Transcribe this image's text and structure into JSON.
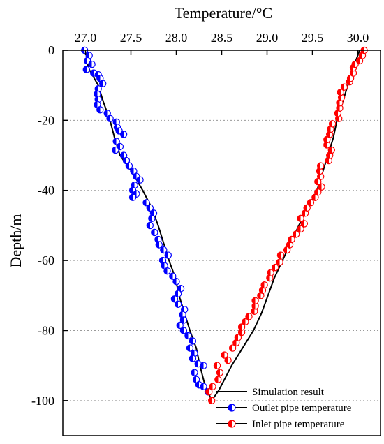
{
  "chart_data": {
    "type": "scatter",
    "xlabel": "Temperature/°C",
    "ylabel": "Depth/m",
    "x_axis_position": "top",
    "xlim": [
      26.75,
      30.25
    ],
    "ylim": [
      -110,
      0
    ],
    "xticks": [
      27.0,
      27.5,
      28.0,
      28.5,
      29.0,
      29.5,
      30.0
    ],
    "xtick_labels": [
      "27.0",
      "27.5",
      "28.0",
      "28.5",
      "29.0",
      "29.5",
      "30.0"
    ],
    "yticks": [
      0,
      -20,
      -40,
      -60,
      -80,
      -100
    ],
    "ytick_labels": [
      "0",
      "-20",
      "-40",
      "-60",
      "-80",
      "-100"
    ],
    "grid": "horizontal dotted",
    "legend_position": "bottom-right",
    "series": [
      {
        "name": "Simulation result",
        "kind": "line",
        "color": "#000000",
        "points": [
          [
            27.01,
            0
          ],
          [
            27.03,
            -5
          ],
          [
            27.14,
            -10
          ],
          [
            27.2,
            -15
          ],
          [
            27.27,
            -20
          ],
          [
            27.32,
            -25
          ],
          [
            27.38,
            -30
          ],
          [
            27.52,
            -35
          ],
          [
            27.63,
            -40
          ],
          [
            27.73,
            -45
          ],
          [
            27.8,
            -50
          ],
          [
            27.86,
            -55
          ],
          [
            27.92,
            -60
          ],
          [
            27.99,
            -65
          ],
          [
            28.03,
            -70
          ],
          [
            28.09,
            -75
          ],
          [
            28.15,
            -80
          ],
          [
            28.22,
            -85
          ],
          [
            28.26,
            -90
          ],
          [
            28.31,
            -95
          ],
          [
            28.39,
            -100
          ],
          [
            28.47,
            -97
          ],
          [
            28.61,
            -90
          ],
          [
            28.73,
            -85
          ],
          [
            28.85,
            -80
          ],
          [
            28.94,
            -75
          ],
          [
            29.01,
            -70
          ],
          [
            29.08,
            -65
          ],
          [
            29.17,
            -60
          ],
          [
            29.26,
            -55
          ],
          [
            29.35,
            -50
          ],
          [
            29.45,
            -45
          ],
          [
            29.55,
            -40
          ],
          [
            29.61,
            -35
          ],
          [
            29.67,
            -30
          ],
          [
            29.73,
            -25
          ],
          [
            29.77,
            -20
          ],
          [
            29.83,
            -15
          ],
          [
            29.89,
            -10
          ],
          [
            29.95,
            -5
          ],
          [
            30.02,
            0
          ]
        ]
      },
      {
        "name": "Outlet pipe temperature",
        "kind": "marker",
        "color": "#0000ff",
        "points": [
          [
            26.99,
            0
          ],
          [
            27.04,
            -1.5
          ],
          [
            27.02,
            -3
          ],
          [
            27.07,
            -4
          ],
          [
            27.01,
            -5.5
          ],
          [
            27.09,
            -6.5
          ],
          [
            27.14,
            -7
          ],
          [
            27.16,
            -8
          ],
          [
            27.19,
            -9.5
          ],
          [
            27.14,
            -11
          ],
          [
            27.13,
            -12.5
          ],
          [
            27.14,
            -14
          ],
          [
            27.13,
            -15.5
          ],
          [
            27.16,
            -17
          ],
          [
            27.24,
            -18
          ],
          [
            27.27,
            -19.5
          ],
          [
            27.34,
            -20.5
          ],
          [
            27.35,
            -22
          ],
          [
            27.37,
            -23
          ],
          [
            27.42,
            -24
          ],
          [
            27.34,
            -26
          ],
          [
            27.38,
            -27.5
          ],
          [
            27.33,
            -28.5
          ],
          [
            27.42,
            -30
          ],
          [
            27.45,
            -31.5
          ],
          [
            27.48,
            -33
          ],
          [
            27.53,
            -34.5
          ],
          [
            27.56,
            -36
          ],
          [
            27.6,
            -37
          ],
          [
            27.54,
            -38.5
          ],
          [
            27.52,
            -40
          ],
          [
            27.56,
            -41
          ],
          [
            27.52,
            -42
          ],
          [
            27.67,
            -43.5
          ],
          [
            27.71,
            -45
          ],
          [
            27.75,
            -46.5
          ],
          [
            27.73,
            -48
          ],
          [
            27.71,
            -50
          ],
          [
            27.76,
            -52
          ],
          [
            27.8,
            -54
          ],
          [
            27.81,
            -55.5
          ],
          [
            27.86,
            -57
          ],
          [
            27.91,
            -58.5
          ],
          [
            27.85,
            -60
          ],
          [
            27.87,
            -61.5
          ],
          [
            27.9,
            -63
          ],
          [
            27.96,
            -64.5
          ],
          [
            28.0,
            -66
          ],
          [
            28.05,
            -68
          ],
          [
            28.02,
            -69.5
          ],
          [
            27.98,
            -71
          ],
          [
            28.02,
            -72.5
          ],
          [
            28.09,
            -74
          ],
          [
            28.07,
            -75.5
          ],
          [
            28.08,
            -77
          ],
          [
            28.04,
            -78.5
          ],
          [
            28.08,
            -80
          ],
          [
            28.13,
            -81.5
          ],
          [
            28.18,
            -83
          ],
          [
            28.15,
            -85
          ],
          [
            28.2,
            -86.5
          ],
          [
            28.18,
            -88
          ],
          [
            28.24,
            -89.5
          ],
          [
            28.3,
            -90
          ],
          [
            28.2,
            -92
          ],
          [
            28.22,
            -94
          ],
          [
            28.25,
            -95.5
          ],
          [
            28.3,
            -96
          ],
          [
            28.35,
            -97.5
          ]
        ]
      },
      {
        "name": "Inlet pipe temperature",
        "kind": "marker",
        "color": "#ff0000",
        "points": [
          [
            28.39,
            -100
          ],
          [
            28.36,
            -97.5
          ],
          [
            28.4,
            -96
          ],
          [
            28.46,
            -94
          ],
          [
            28.48,
            -92
          ],
          [
            28.45,
            -90
          ],
          [
            28.57,
            -88.5
          ],
          [
            28.53,
            -87
          ],
          [
            28.62,
            -85
          ],
          [
            28.66,
            -83.5
          ],
          [
            28.68,
            -82
          ],
          [
            28.72,
            -80.5
          ],
          [
            28.72,
            -79
          ],
          [
            28.76,
            -77.5
          ],
          [
            28.8,
            -76
          ],
          [
            28.86,
            -74.5
          ],
          [
            28.87,
            -73
          ],
          [
            28.87,
            -71.5
          ],
          [
            28.93,
            -70
          ],
          [
            28.95,
            -68.5
          ],
          [
            28.97,
            -67
          ],
          [
            29.03,
            -65
          ],
          [
            29.04,
            -63.5
          ],
          [
            29.09,
            -62
          ],
          [
            29.14,
            -60.5
          ],
          [
            29.15,
            -58.5
          ],
          [
            29.22,
            -57
          ],
          [
            29.25,
            -55.5
          ],
          [
            29.27,
            -54
          ],
          [
            29.32,
            -52.5
          ],
          [
            29.37,
            -51
          ],
          [
            29.41,
            -49.5
          ],
          [
            29.37,
            -48
          ],
          [
            29.42,
            -46.5
          ],
          [
            29.44,
            -45
          ],
          [
            29.48,
            -43.5
          ],
          [
            29.53,
            -42
          ],
          [
            29.56,
            -40.5
          ],
          [
            29.6,
            -39
          ],
          [
            29.56,
            -37.5
          ],
          [
            29.59,
            -36
          ],
          [
            29.58,
            -34.5
          ],
          [
            29.59,
            -33
          ],
          [
            29.68,
            -31.5
          ],
          [
            29.69,
            -30
          ],
          [
            29.71,
            -28.5
          ],
          [
            29.66,
            -27
          ],
          [
            29.66,
            -25.5
          ],
          [
            29.69,
            -24
          ],
          [
            29.7,
            -22.5
          ],
          [
            29.72,
            -21
          ],
          [
            29.79,
            -19.5
          ],
          [
            29.78,
            -18
          ],
          [
            29.8,
            -16.5
          ],
          [
            29.8,
            -15
          ],
          [
            29.82,
            -13.5
          ],
          [
            29.81,
            -12
          ],
          [
            29.85,
            -10.5
          ],
          [
            29.91,
            -9
          ],
          [
            29.92,
            -8
          ],
          [
            29.95,
            -6.5
          ],
          [
            29.95,
            -5
          ],
          [
            29.97,
            -4
          ],
          [
            30.02,
            -3
          ],
          [
            30.05,
            -1.5
          ],
          [
            30.07,
            0
          ]
        ]
      }
    ]
  }
}
